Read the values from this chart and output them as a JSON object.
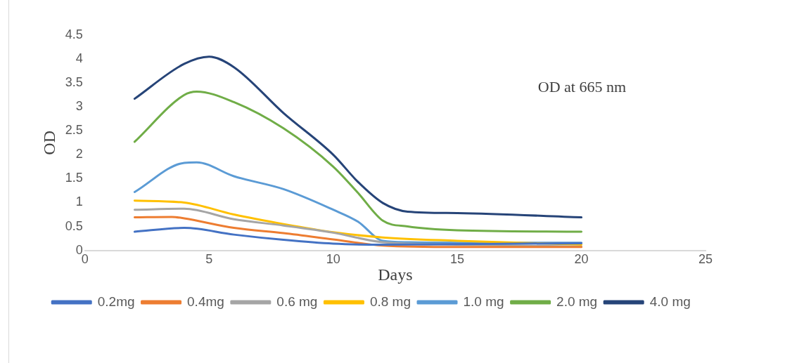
{
  "chart_data": {
    "type": "line",
    "xlabel": "Days",
    "ylabel": "OD",
    "annotations": [
      "OD at 665 nm"
    ],
    "xlim": [
      0,
      25
    ],
    "xticks": [
      0,
      5,
      10,
      15,
      20,
      25
    ],
    "ylim": [
      0,
      4.5
    ],
    "yticks": [
      0,
      0.5,
      1,
      1.5,
      2,
      2.5,
      3,
      3.5,
      4,
      4.5
    ],
    "grid": false,
    "legend": "bottom",
    "marker": "none",
    "line_style": "solid",
    "series": [
      {
        "name": "0.2mg",
        "color": "#4472c4",
        "x": [
          2,
          4,
          6,
          8,
          10,
          12,
          15,
          20
        ],
        "values": [
          0.39,
          0.47,
          0.33,
          0.22,
          0.14,
          0.12,
          0.13,
          0.15
        ]
      },
      {
        "name": "0.4mg",
        "color": "#ed7d31",
        "x": [
          2,
          3.5,
          4,
          6,
          8,
          10,
          12,
          15,
          20
        ],
        "values": [
          0.69,
          0.7,
          0.67,
          0.47,
          0.36,
          0.23,
          0.1,
          0.07,
          0.07
        ]
      },
      {
        "name": "0.6 mg",
        "color": "#a5a5a5",
        "x": [
          2,
          4,
          6,
          8,
          10,
          12,
          15,
          20
        ],
        "values": [
          0.85,
          0.87,
          0.65,
          0.52,
          0.37,
          0.17,
          0.12,
          0.08
        ]
      },
      {
        "name": "0.8 mg",
        "color": "#ffc000",
        "x": [
          2,
          4,
          6,
          8,
          10,
          12,
          15,
          20
        ],
        "values": [
          1.04,
          1.0,
          0.75,
          0.55,
          0.38,
          0.27,
          0.2,
          0.12
        ]
      },
      {
        "name": "1.0 mg",
        "color": "#5b9bd5",
        "x": [
          2,
          4,
          4.5,
          6,
          8,
          10,
          11,
          12,
          13,
          15,
          20
        ],
        "values": [
          1.22,
          1.83,
          1.84,
          1.55,
          1.28,
          0.85,
          0.6,
          0.2,
          0.17,
          0.16,
          0.16
        ]
      },
      {
        "name": "2.0 mg",
        "color": "#70ad47",
        "x": [
          2,
          4,
          4.5,
          6,
          8,
          10,
          11,
          12,
          13,
          15,
          20
        ],
        "values": [
          2.27,
          3.25,
          3.32,
          3.1,
          2.55,
          1.75,
          1.2,
          0.62,
          0.5,
          0.42,
          0.39
        ]
      },
      {
        "name": "4.0 mg",
        "color": "#264478",
        "x": [
          2,
          4,
          5,
          6,
          8,
          10,
          11,
          12,
          13,
          15,
          20
        ],
        "values": [
          3.17,
          3.9,
          4.05,
          3.83,
          2.87,
          2.0,
          1.43,
          0.99,
          0.81,
          0.78,
          0.69
        ]
      }
    ]
  }
}
